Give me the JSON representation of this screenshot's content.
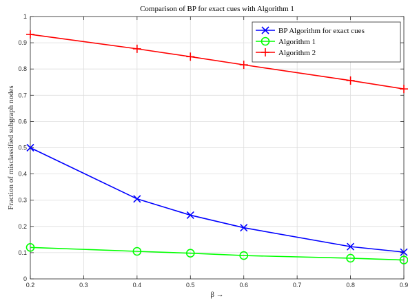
{
  "chart_data": {
    "type": "line",
    "title": "Comparison of BP for exact cues with Algorithm 1",
    "xlabel": "β →",
    "ylabel": "Fraction of misclassified subgraph nodes",
    "xlim": [
      0.2,
      0.9
    ],
    "ylim": [
      0,
      1
    ],
    "xticks": [
      "0.2",
      "0.3",
      "0.4",
      "0.5",
      "0.6",
      "0.7",
      "0.8",
      "0.9"
    ],
    "yticks": [
      "0",
      "0.1",
      "0.2",
      "0.3",
      "0.4",
      "0.5",
      "0.6",
      "0.7",
      "0.8",
      "0.9",
      "1"
    ],
    "grid": true,
    "legend_position": "top-right",
    "series": [
      {
        "name": "BP Algorithm for exact cues",
        "color": "#0000ff",
        "marker": "x",
        "x": [
          0.2,
          0.4,
          0.5,
          0.6,
          0.8,
          0.9
        ],
        "y": [
          0.5,
          0.305,
          0.243,
          0.195,
          0.123,
          0.102
        ]
      },
      {
        "name": "Algorithm 1",
        "color": "#00ff00",
        "marker": "o",
        "x": [
          0.2,
          0.4,
          0.5,
          0.6,
          0.8,
          0.9
        ],
        "y": [
          0.12,
          0.105,
          0.098,
          0.089,
          0.079,
          0.072
        ]
      },
      {
        "name": "Algorithm 2",
        "color": "#ff0000",
        "marker": "+",
        "x": [
          0.2,
          0.4,
          0.5,
          0.6,
          0.8,
          0.9
        ],
        "y": [
          0.932,
          0.877,
          0.847,
          0.816,
          0.756,
          0.724
        ]
      }
    ]
  }
}
